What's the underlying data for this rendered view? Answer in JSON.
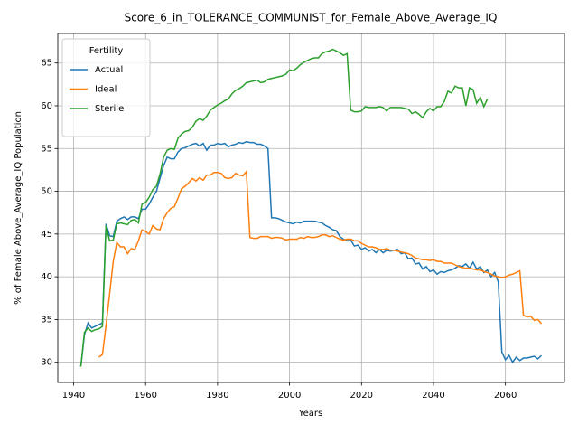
{
  "chart_data": {
    "type": "line",
    "title": "Score_6_in_TOLERANCE_COMMUNIST_for_Female_Above_Average_IQ",
    "x_label": "Years",
    "y_label": "% of Female Above_Average_IQ Population",
    "legend_title": "Fertility",
    "legend": "upper left",
    "grid": true,
    "xlim": [
      1935.6,
      2076.4
    ],
    "ylim": [
      27.64,
      68.46
    ],
    "xticks": [
      1940,
      1960,
      1980,
      2000,
      2020,
      2040,
      2060
    ],
    "yticks": [
      30,
      35,
      40,
      45,
      50,
      55,
      60,
      65
    ],
    "x": [
      1942,
      1943,
      1944,
      1945,
      1946,
      1947,
      1948,
      1949,
      1950,
      1951,
      1952,
      1953,
      1954,
      1955,
      1956,
      1957,
      1958,
      1959,
      1960,
      1961,
      1962,
      1963,
      1964,
      1965,
      1966,
      1967,
      1968,
      1969,
      1970,
      1971,
      1972,
      1973,
      1974,
      1975,
      1976,
      1977,
      1978,
      1979,
      1980,
      1981,
      1982,
      1983,
      1984,
      1985,
      1986,
      1987,
      1988,
      1989,
      1990,
      1991,
      1992,
      1993,
      1994,
      1995,
      1996,
      1997,
      1998,
      1999,
      2000,
      2001,
      2002,
      2003,
      2004,
      2005,
      2006,
      2007,
      2008,
      2009,
      2010,
      2011,
      2012,
      2013,
      2014,
      2015,
      2016,
      2017,
      2018,
      2019,
      2020,
      2021,
      2022,
      2023,
      2024,
      2025,
      2026,
      2027,
      2028,
      2029,
      2030,
      2031,
      2032,
      2033,
      2034,
      2035,
      2036,
      2037,
      2038,
      2039,
      2040,
      2041,
      2042,
      2043,
      2044,
      2045,
      2046,
      2047,
      2048,
      2049,
      2050,
      2051,
      2052,
      2053,
      2054,
      2055,
      2056,
      2057,
      2058,
      2059,
      2060,
      2061,
      2062,
      2063,
      2064,
      2065,
      2066,
      2067,
      2068,
      2069,
      2070
    ],
    "series": [
      {
        "name": "Actual",
        "color": "#1f77b4",
        "values": [
          29.5,
          33.2,
          34.6,
          34.0,
          34.2,
          34.4,
          34.6,
          46.2,
          44.8,
          44.7,
          46.5,
          46.8,
          47.0,
          46.7,
          47.0,
          47.0,
          46.8,
          47.9,
          47.9,
          48.5,
          49.3,
          50.0,
          51.5,
          53.0,
          54.0,
          53.8,
          53.8,
          54.6,
          55.0,
          55.1,
          55.3,
          55.5,
          55.6,
          55.3,
          55.6,
          54.8,
          55.4,
          55.4,
          55.6,
          55.5,
          55.6,
          55.2,
          55.4,
          55.5,
          55.7,
          55.6,
          55.8,
          55.7,
          55.7,
          55.5,
          55.5,
          55.3,
          55.0,
          46.9,
          46.9,
          46.8,
          46.6,
          46.4,
          46.3,
          46.2,
          46.4,
          46.3,
          46.5,
          46.5,
          46.5,
          46.5,
          46.4,
          46.3,
          46.0,
          45.8,
          45.5,
          45.4,
          44.7,
          44.4,
          44.2,
          44.3,
          43.6,
          43.7,
          43.2,
          43.4,
          43.0,
          43.2,
          42.8,
          43.2,
          42.8,
          43.1,
          43.0,
          43.1,
          43.2,
          42.7,
          42.8,
          42.1,
          42.2,
          41.5,
          41.6,
          40.9,
          41.2,
          40.6,
          40.8,
          40.3,
          40.6,
          40.5,
          40.7,
          40.8,
          41.0,
          41.3,
          41.2,
          41.5,
          41.0,
          41.7,
          40.9,
          41.2,
          40.5,
          40.8,
          40.0,
          40.5,
          39.4,
          31.2,
          30.3,
          30.8,
          30.0,
          30.6,
          30.2,
          30.5,
          30.5,
          30.6,
          30.7,
          30.4,
          30.8
        ]
      },
      {
        "name": "Ideal",
        "color": "#ff7f0e",
        "values": [
          null,
          null,
          null,
          null,
          null,
          30.6,
          30.9,
          34.3,
          38.0,
          41.8,
          44.0,
          43.5,
          43.5,
          42.7,
          43.3,
          43.2,
          44.2,
          45.5,
          45.3,
          45.0,
          46.0,
          45.6,
          45.5,
          46.8,
          47.5,
          48.0,
          48.2,
          49.2,
          50.3,
          50.6,
          51.0,
          51.5,
          51.2,
          51.6,
          51.3,
          51.9,
          51.9,
          52.2,
          52.2,
          52.1,
          51.6,
          51.5,
          51.6,
          52.1,
          51.9,
          51.8,
          52.3,
          44.6,
          44.5,
          44.5,
          44.7,
          44.7,
          44.7,
          44.5,
          44.6,
          44.6,
          44.5,
          44.3,
          44.4,
          44.4,
          44.4,
          44.6,
          44.5,
          44.7,
          44.6,
          44.6,
          44.7,
          44.9,
          44.9,
          44.7,
          44.8,
          44.6,
          44.4,
          44.3,
          44.4,
          44.4,
          44.2,
          44.2,
          43.9,
          43.7,
          43.5,
          43.5,
          43.4,
          43.2,
          43.2,
          43.3,
          43.1,
          43.1,
          43.0,
          42.9,
          42.8,
          42.7,
          42.5,
          42.2,
          42.1,
          42.0,
          42.0,
          41.9,
          42.0,
          41.8,
          41.8,
          41.6,
          41.6,
          41.6,
          41.4,
          41.2,
          41.1,
          41.0,
          41.0,
          40.9,
          40.8,
          40.8,
          40.6,
          40.5,
          40.3,
          40.1,
          40.0,
          39.9,
          40.0,
          40.2,
          40.3,
          40.5,
          40.7,
          35.5,
          35.3,
          35.4,
          34.9,
          35.0,
          34.5
        ]
      },
      {
        "name": "Sterile",
        "color": "#2ca02c",
        "values": [
          29.5,
          33.5,
          34.0,
          33.6,
          33.8,
          33.9,
          34.2,
          46.0,
          44.2,
          44.3,
          46.2,
          46.3,
          46.2,
          46.1,
          46.6,
          46.7,
          46.3,
          48.5,
          48.7,
          49.3,
          50.2,
          50.6,
          52.0,
          54.0,
          54.8,
          55.0,
          54.9,
          56.2,
          56.7,
          57.0,
          57.1,
          57.5,
          58.2,
          58.5,
          58.3,
          58.8,
          59.5,
          59.8,
          60.1,
          60.3,
          60.6,
          60.8,
          61.4,
          61.8,
          62.0,
          62.3,
          62.7,
          62.8,
          62.9,
          63.0,
          62.7,
          62.8,
          63.1,
          63.2,
          63.3,
          63.4,
          63.5,
          63.7,
          64.2,
          64.1,
          64.4,
          64.8,
          65.1,
          65.3,
          65.5,
          65.6,
          65.6,
          66.1,
          66.3,
          66.4,
          66.6,
          66.4,
          66.2,
          65.9,
          66.1,
          59.5,
          59.3,
          59.3,
          59.4,
          59.9,
          59.8,
          59.8,
          59.8,
          59.9,
          59.8,
          59.4,
          59.8,
          59.8,
          59.8,
          59.8,
          59.7,
          59.6,
          59.1,
          59.3,
          59.0,
          58.6,
          59.3,
          59.7,
          59.4,
          59.9,
          59.9,
          60.5,
          61.7,
          61.5,
          62.3,
          62.1,
          62.1,
          60.0,
          62.1,
          61.9,
          60.3,
          61.0,
          59.9,
          60.8,
          null,
          null,
          null,
          null,
          null,
          null,
          null,
          null,
          null,
          null,
          null,
          null,
          null,
          null,
          null
        ]
      }
    ]
  }
}
